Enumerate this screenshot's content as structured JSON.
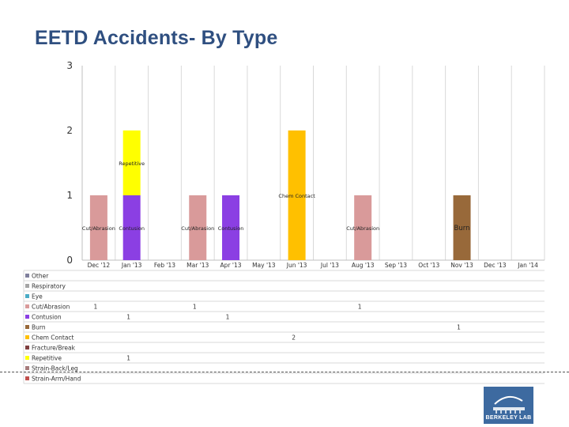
{
  "page": {
    "title": "EETD Accidents- By Type"
  },
  "logo": {
    "text": "BERKELEY LAB"
  },
  "chart_data": {
    "type": "bar",
    "stacked": true,
    "title": "EETD Accidents- By Type",
    "ylim": [
      0,
      3
    ],
    "yticks": [
      0,
      1,
      2,
      3
    ],
    "categories": [
      "Dec '12",
      "Jan '13",
      "Feb '13",
      "Mar '13",
      "Apr '13",
      "May '13",
      "Jun '13",
      "Jul '13",
      "Aug '13",
      "Sep '13",
      "Oct '13",
      "Nov '13",
      "Dec '13",
      "Jan '14"
    ],
    "series": [
      {
        "name": "Other",
        "color": "#7f7f9c",
        "values": [
          0,
          0,
          0,
          0,
          0,
          0,
          0,
          0,
          0,
          0,
          0,
          0,
          0,
          0
        ]
      },
      {
        "name": "Respiratory",
        "color": "#a5a5a5",
        "values": [
          0,
          0,
          0,
          0,
          0,
          0,
          0,
          0,
          0,
          0,
          0,
          0,
          0,
          0
        ]
      },
      {
        "name": "Eye",
        "color": "#4bacc6",
        "values": [
          0,
          0,
          0,
          0,
          0,
          0,
          0,
          0,
          0,
          0,
          0,
          0,
          0,
          0
        ]
      },
      {
        "name": "Cut/Abrasion",
        "color": "#d99a9a",
        "values": [
          1,
          0,
          0,
          1,
          0,
          0,
          0,
          0,
          1,
          0,
          0,
          0,
          0,
          0
        ]
      },
      {
        "name": "Contusion",
        "color": "#8b3fe3",
        "values": [
          0,
          1,
          0,
          0,
          1,
          0,
          0,
          0,
          0,
          0,
          0,
          0,
          0,
          0
        ]
      },
      {
        "name": "Burn",
        "color": "#98693a",
        "values": [
          0,
          0,
          0,
          0,
          0,
          0,
          0,
          0,
          0,
          0,
          0,
          1,
          0,
          0
        ]
      },
      {
        "name": "Chem Contact",
        "color": "#ffc000",
        "values": [
          0,
          0,
          0,
          0,
          0,
          0,
          2,
          0,
          0,
          0,
          0,
          0,
          0,
          0
        ]
      },
      {
        "name": "Fracture/Break",
        "color": "#7f3f3f",
        "values": [
          0,
          0,
          0,
          0,
          0,
          0,
          0,
          0,
          0,
          0,
          0,
          0,
          0,
          0
        ]
      },
      {
        "name": "Repetitive",
        "color": "#ffff00",
        "values": [
          0,
          1,
          0,
          0,
          0,
          0,
          0,
          0,
          0,
          0,
          0,
          0,
          0,
          0
        ]
      },
      {
        "name": "Strain-Back/Leg",
        "color": "#a67b7b",
        "values": [
          0,
          0,
          0,
          0,
          0,
          0,
          0,
          0,
          0,
          0,
          0,
          0,
          0,
          0
        ]
      },
      {
        "name": "Strain-Arm/Hand",
        "color": "#c0504d",
        "values": [
          0,
          0,
          0,
          0,
          0,
          0,
          0,
          0,
          0,
          0,
          0,
          0,
          0,
          0
        ]
      }
    ],
    "bar_labels": [
      {
        "category": "Dec '12",
        "series": "Cut/Abrasion",
        "text": "Cut/Abrasion"
      },
      {
        "category": "Jan '13",
        "series": "Repetitive",
        "text": "Repetitive"
      },
      {
        "category": "Jan '13",
        "series": "Contusion",
        "text": "Contusion"
      },
      {
        "category": "Mar '13",
        "series": "Cut/Abrasion",
        "text": "Cut/Abrasion"
      },
      {
        "category": "Apr '13",
        "series": "Contusion",
        "text": "Contusion"
      },
      {
        "category": "Jun '13",
        "series": "Chem Contact",
        "text": "Chem Contact"
      },
      {
        "category": "Aug '13",
        "series": "Cut/Abrasion",
        "text": "Cut/Abrasion"
      },
      {
        "category": "Nov '13",
        "series": "Burn",
        "text": "Burn"
      }
    ]
  }
}
